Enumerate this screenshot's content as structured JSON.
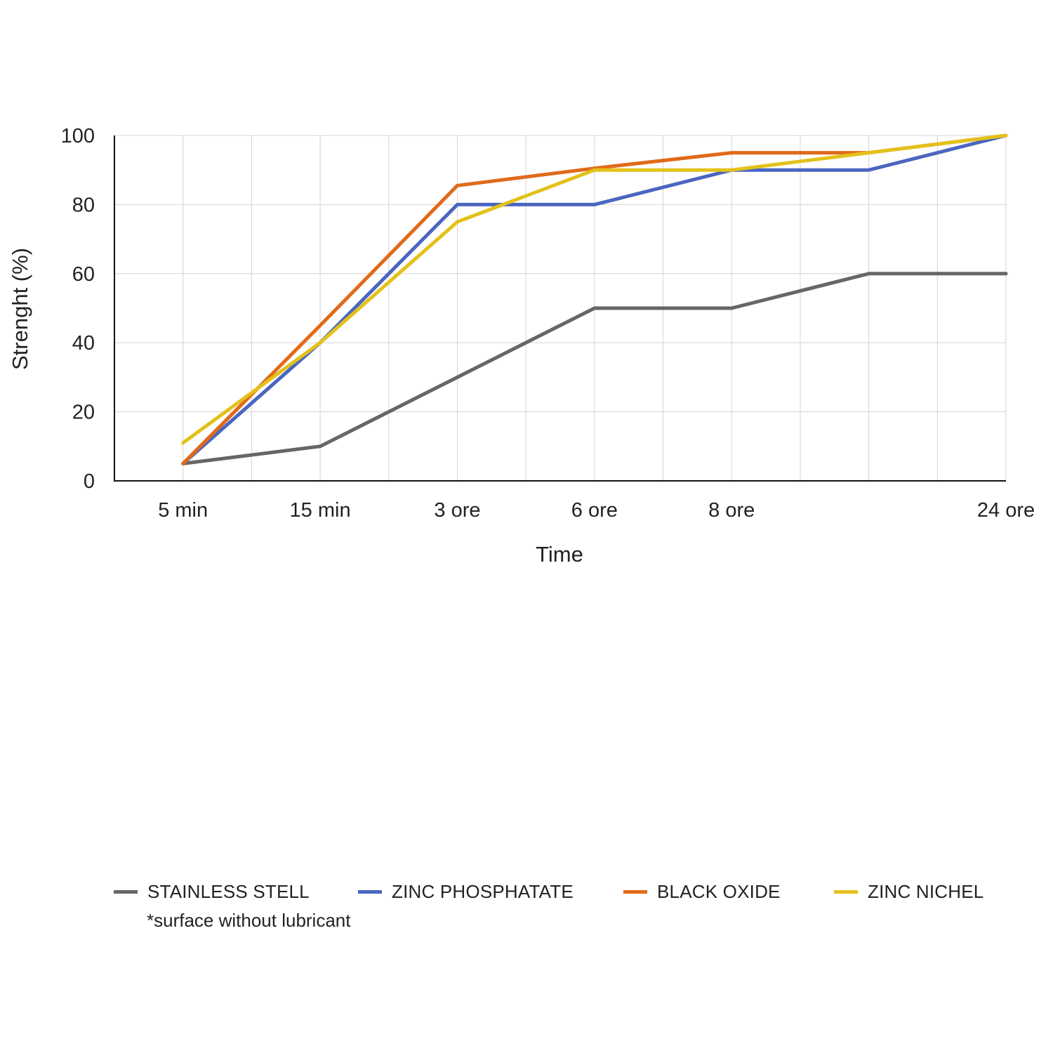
{
  "chart_data": {
    "type": "line",
    "x_categories": [
      "5 min",
      "15 min",
      "",
      "3 ore",
      "",
      "6 ore",
      "",
      "8 ore",
      "",
      "",
      "",
      "24 ore"
    ],
    "x_label_positions_index_note": "",
    "xlabel": "Time",
    "ylabel": "Strenght (%)",
    "ylim": [
      0,
      100
    ],
    "yticks": [
      0,
      20,
      40,
      60,
      80,
      100
    ],
    "grid": true,
    "legend_position": "bottom",
    "series": [
      {
        "name": "STAINLESS STELL",
        "color": "#666666",
        "x": [
          1,
          3,
          5,
          7,
          9,
          11,
          13
        ],
        "values": [
          5,
          10,
          30,
          50,
          50,
          60,
          60
        ]
      },
      {
        "name": "ZINC PHOSPHATATE",
        "color": "#4a66c0",
        "x": [
          1,
          3,
          5,
          7,
          9,
          11,
          13
        ],
        "values": [
          5,
          40,
          80,
          80,
          90,
          90,
          100
        ]
      },
      {
        "name": "BLACK OXIDE",
        "color": "#e06a1a",
        "x": [
          1,
          3,
          5,
          7,
          9,
          11,
          13
        ],
        "values": [
          5,
          45,
          85.5,
          90.5,
          95,
          95,
          100
        ]
      },
      {
        "name": "ZINC NICHEL",
        "color": "#e3c11a",
        "x": [
          1,
          3,
          5,
          7,
          9,
          11,
          13
        ],
        "values": [
          11,
          40,
          75,
          90,
          90,
          95,
          100
        ]
      }
    ],
    "x_tick_labels": [
      {
        "x": 1,
        "label": "5 min"
      },
      {
        "x": 3,
        "label": "15 min"
      },
      {
        "x": 5,
        "label": "3 ore"
      },
      {
        "x": 7,
        "label": "6 ore"
      },
      {
        "x": 9,
        "label": "8 ore"
      },
      {
        "x": 13,
        "label": "24 ore"
      }
    ],
    "xlim": [
      0,
      13
    ]
  },
  "footnote": "*surface without lubricant"
}
